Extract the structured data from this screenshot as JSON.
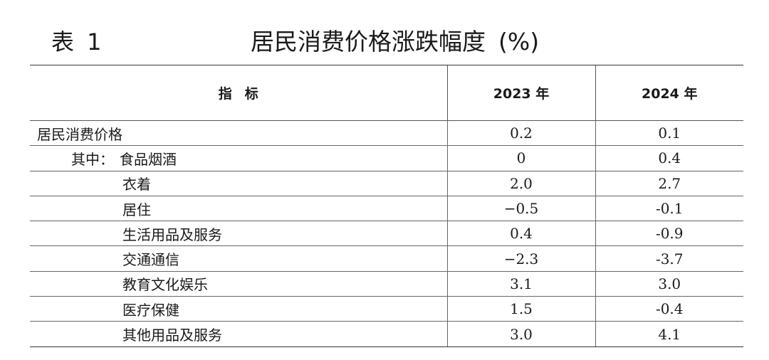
{
  "title": {
    "label": "表 1",
    "text": "居民消费价格涨跌幅度",
    "unit": "(%)"
  },
  "table": {
    "headers": [
      "指标",
      "2023 年",
      "2024 年"
    ],
    "rows": [
      {
        "prefix": "",
        "name": "居民消费价格",
        "level": 0,
        "v2023": "0.2",
        "v2024": "0.1"
      },
      {
        "prefix": "其中：",
        "name": "食品烟酒",
        "level": 1,
        "v2023": "0",
        "v2024": "0.4"
      },
      {
        "prefix": "",
        "name": "衣着",
        "level": 2,
        "v2023": "2.0",
        "v2024": "2.7"
      },
      {
        "prefix": "",
        "name": "居住",
        "level": 2,
        "v2023": "−0.5",
        "v2024": "-0.1"
      },
      {
        "prefix": "",
        "name": "生活用品及服务",
        "level": 2,
        "v2023": "0.4",
        "v2024": "-0.9"
      },
      {
        "prefix": "",
        "name": "交通通信",
        "level": 2,
        "v2023": "−2.3",
        "v2024": "-3.7"
      },
      {
        "prefix": "",
        "name": "教育文化娱乐",
        "level": 2,
        "v2023": "3.1",
        "v2024": "3.0"
      },
      {
        "prefix": "",
        "name": "医疗保健",
        "level": 2,
        "v2023": "1.5",
        "v2024": "-0.4"
      },
      {
        "prefix": "",
        "name": "其他用品及服务",
        "level": 2,
        "v2023": "3.0",
        "v2024": "4.1"
      }
    ]
  }
}
